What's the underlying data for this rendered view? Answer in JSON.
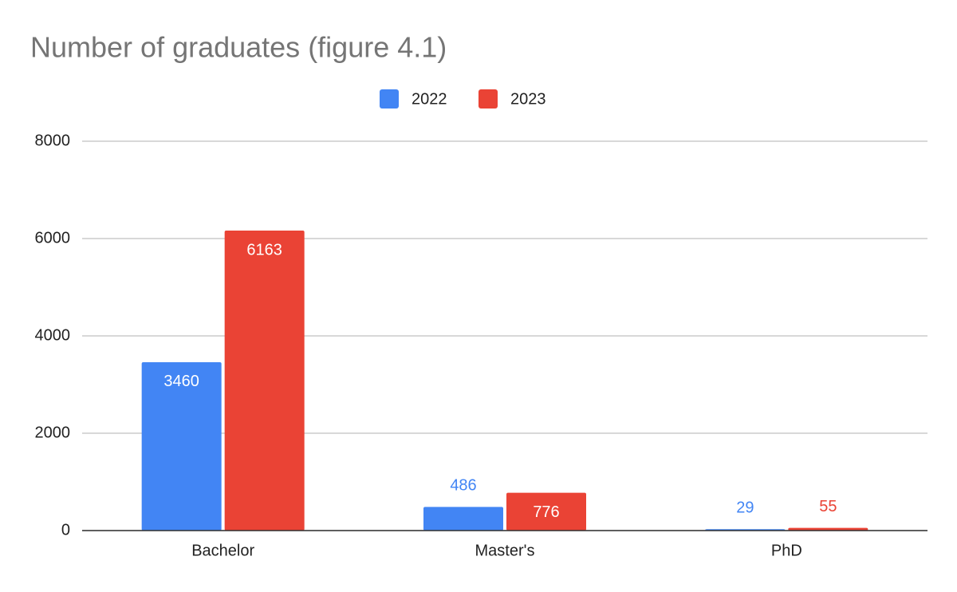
{
  "chart_data": {
    "type": "bar",
    "title": "Number of graduates (figure 4.1)",
    "categories": [
      "Bachelor",
      "Master's",
      "PhD"
    ],
    "series": [
      {
        "name": "2022",
        "color": "#4285f4",
        "values": [
          3460,
          486,
          29
        ]
      },
      {
        "name": "2023",
        "color": "#ea4335",
        "values": [
          6163,
          776,
          55
        ]
      }
    ],
    "ylim": [
      0,
      8000
    ],
    "yticks": [
      0,
      2000,
      4000,
      6000,
      8000
    ],
    "grid": true,
    "legend": "top"
  }
}
